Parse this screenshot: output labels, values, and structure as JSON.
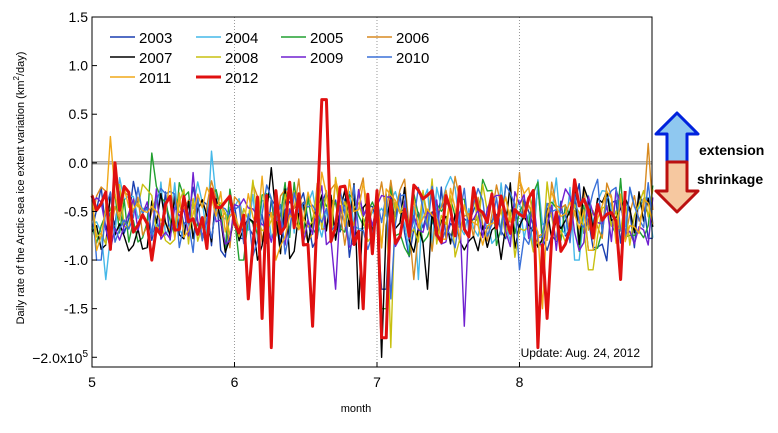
{
  "chart_data": {
    "type": "line",
    "xlabel": "month",
    "ylabel": "Daily rate of the Arctic sea ice extent variation (km²/day)",
    "ylabel_parts": {
      "main": "Daily rate of the Arctic sea ice extent variation (km",
      "sup": "2",
      "tail": "/day)"
    },
    "xlim": [
      5,
      8.93
    ],
    "ylim": [
      -2.1,
      1.5
    ],
    "x_ticks": [
      {
        "value": 5,
        "label": "5"
      },
      {
        "value": 6,
        "label": "6"
      },
      {
        "value": 7,
        "label": "7"
      },
      {
        "value": 8,
        "label": "8"
      }
    ],
    "y_ticks": [
      {
        "value": 1.5,
        "label": "1.5"
      },
      {
        "value": 1.0,
        "label": "1.0"
      },
      {
        "value": 0.5,
        "label": "0.5"
      },
      {
        "value": 0.0,
        "label": "0.0"
      },
      {
        "value": -0.5,
        "label": "-0.5"
      },
      {
        "value": -1.0,
        "label": "-1.0"
      },
      {
        "value": -1.5,
        "label": "-1.5"
      }
    ],
    "y_bottom_label": {
      "value": -2.0,
      "mantissa": "−2.0x10",
      "exp": "5"
    },
    "grid": {
      "x_dotted": true,
      "y": false
    },
    "zero_line": 0,
    "legend_position": "top-left",
    "annotation": "Update: Aug. 24, 2012",
    "side_labels": {
      "up": "extension",
      "down": "shrinkage"
    },
    "series": [
      {
        "name": "2003",
        "color": "#1a3fb0",
        "baseline": -0.58,
        "seed": 3,
        "events": [
          [
            5.9,
            -0.9
          ],
          [
            7.05,
            -1.3
          ],
          [
            8.2,
            -0.9
          ]
        ]
      },
      {
        "name": "2004",
        "color": "#45b8e8",
        "baseline": -0.52,
        "seed": 4,
        "events": [
          [
            5.1,
            -1.2
          ],
          [
            5.85,
            0.12
          ],
          [
            7.3,
            -1.2
          ],
          [
            8.4,
            -1.0
          ]
        ]
      },
      {
        "name": "2005",
        "color": "#22a030",
        "baseline": -0.55,
        "seed": 5,
        "events": [
          [
            5.42,
            0.1
          ],
          [
            6.05,
            -1.0
          ],
          [
            7.05,
            -1.5
          ],
          [
            8.5,
            -0.9
          ]
        ]
      },
      {
        "name": "2006",
        "color": "#d88a20",
        "baseline": -0.5,
        "seed": 6,
        "events": [
          [
            7.25,
            -1.2
          ],
          [
            8.0,
            -0.1
          ],
          [
            8.9,
            0.2
          ]
        ]
      },
      {
        "name": "2007",
        "color": "#000000",
        "baseline": -0.62,
        "seed": 7,
        "events": [
          [
            6.25,
            -0.05
          ],
          [
            6.88,
            -1.5
          ],
          [
            7.03,
            -2.0
          ],
          [
            7.35,
            -1.3
          ]
        ]
      },
      {
        "name": "2008",
        "color": "#c8c010",
        "baseline": -0.55,
        "seed": 8,
        "events": [
          [
            6.7,
            -0.15
          ],
          [
            7.1,
            -1.9
          ],
          [
            8.5,
            -1.1
          ]
        ]
      },
      {
        "name": "2009",
        "color": "#7020d0",
        "baseline": -0.58,
        "seed": 9,
        "events": [
          [
            5.7,
            -0.1
          ],
          [
            6.7,
            -1.3
          ],
          [
            7.62,
            -1.68
          ],
          [
            8.25,
            -0.9
          ]
        ]
      },
      {
        "name": "2010",
        "color": "#3a70d8",
        "baseline": -0.55,
        "seed": 10,
        "events": [
          [
            5.05,
            -1.0
          ],
          [
            7.1,
            -1.4
          ],
          [
            8.0,
            -1.1
          ]
        ]
      },
      {
        "name": "2011",
        "color": "#f0a818",
        "baseline": -0.5,
        "seed": 11,
        "events": [
          [
            5.12,
            0.27
          ],
          [
            6.28,
            -1.0
          ],
          [
            8.15,
            -1.5
          ],
          [
            8.5,
            -0.9
          ]
        ]
      },
      {
        "name": "2012",
        "color": "#e01010",
        "baseline": -0.52,
        "seed": 12,
        "x_end": 8.73,
        "width": 3,
        "events": [
          [
            5.15,
            0.0
          ],
          [
            5.42,
            -1.0
          ],
          [
            6.1,
            -1.4
          ],
          [
            6.2,
            -1.6
          ],
          [
            6.25,
            -1.9
          ],
          [
            6.56,
            -1.68
          ],
          [
            6.63,
            0.65
          ],
          [
            6.9,
            -1.5
          ],
          [
            7.05,
            -1.8
          ],
          [
            8.13,
            -1.9
          ],
          [
            8.2,
            -1.6
          ],
          [
            8.7,
            -1.2
          ]
        ]
      }
    ]
  }
}
